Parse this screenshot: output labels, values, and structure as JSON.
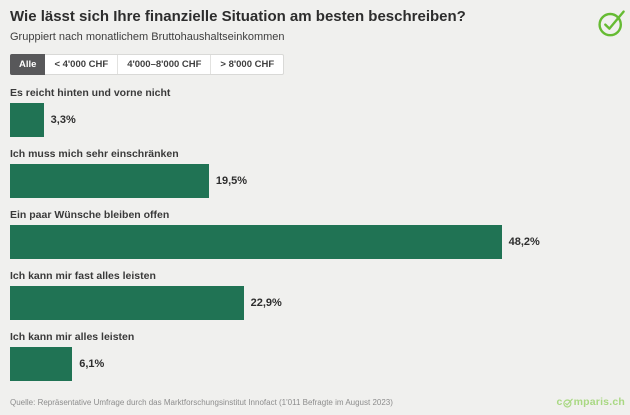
{
  "header": {
    "title": "Wie lässt sich Ihre finanzielle Situation am besten beschreiben?",
    "subtitle": "Gruppiert nach monatlichem Bruttohaushaltseinkommen"
  },
  "tabs": [
    {
      "label": "Alle",
      "selected": true
    },
    {
      "label": "< 4'000 CHF",
      "selected": false
    },
    {
      "label": "4'000–8'000 CHF",
      "selected": false
    },
    {
      "label": "> 8'000 CHF",
      "selected": false
    }
  ],
  "chart_data": {
    "type": "bar",
    "orientation": "horizontal",
    "title": "Wie lässt sich Ihre finanzielle Situation am besten beschreiben?",
    "subtitle": "Gruppiert nach monatlichem Bruttohaushaltseinkommen",
    "categories": [
      "Es reicht hinten und vorne nicht",
      "Ich muss mich sehr einschränken",
      "Ein paar Wünsche bleiben offen",
      "Ich kann mir fast alles leisten",
      "Ich kann mir alles leisten"
    ],
    "values": [
      3.3,
      19.5,
      48.2,
      22.9,
      6.1
    ],
    "value_labels": [
      "3,3%",
      "19,5%",
      "48,2%",
      "22,9%",
      "6,1%"
    ],
    "unit": "%",
    "xlim": [
      0,
      50
    ],
    "grid": false,
    "legend": false,
    "bar_color": "#207354"
  },
  "footer": {
    "source": "Quelle: Repräsentative Umfrage durch das Marktforschungsinstitut Innofact (1'011 Befragte im August 2023)",
    "brand_pre": "c",
    "brand_post": "mparis.ch"
  },
  "icons": {
    "brand_mark": "check-circle-icon",
    "logo_o": "check-circle-icon"
  },
  "colors": {
    "background": "#f0f0ee",
    "bar": "#207354",
    "brand_green": "#66bb33",
    "brand_light_green": "#a9d883",
    "tab_selected_bg": "#58585a"
  }
}
